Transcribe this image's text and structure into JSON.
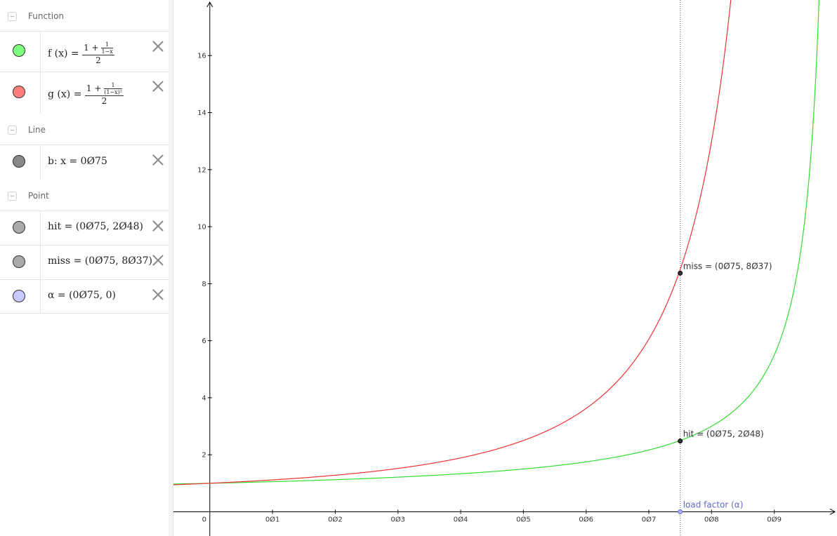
{
  "algebra": {
    "sections": {
      "function": "Function",
      "line": "Line",
      "point": "Point"
    },
    "functions": [
      {
        "name": "f",
        "lhs": "f (x)",
        "eq": "=",
        "num_one": "1 +",
        "inner_num": "1",
        "inner_den": "1−x",
        "den": "2",
        "color": "#7fff7f"
      },
      {
        "name": "g",
        "lhs": "g (x)",
        "eq": "=",
        "num_one": "1 +",
        "inner_num": "1",
        "inner_den": "(1−x)²",
        "den": "2",
        "color": "#ff7f7f"
      }
    ],
    "line": {
      "text": "b: x = 0Ø75",
      "color": "#888888"
    },
    "points": [
      {
        "text": "hit = (0Ø75, 2Ø48)",
        "color": "#aaaaaa"
      },
      {
        "text": "miss = (0Ø75, 8Ø37)",
        "color": "#aaaaaa"
      },
      {
        "text": "α = (0Ø75, 0)",
        "color": "#c8c8ff"
      }
    ]
  },
  "graph": {
    "x_ticks": [
      {
        "v": 0,
        "label": "0"
      },
      {
        "v": 0.1,
        "label": "0Ø1"
      },
      {
        "v": 0.2,
        "label": "0Ø2"
      },
      {
        "v": 0.3,
        "label": "0Ø3"
      },
      {
        "v": 0.4,
        "label": "0Ø4"
      },
      {
        "v": 0.5,
        "label": "0Ø5"
      },
      {
        "v": 0.6,
        "label": "0Ø6"
      },
      {
        "v": 0.7,
        "label": "0Ø7"
      },
      {
        "v": 0.8,
        "label": "0Ø8"
      },
      {
        "v": 0.9,
        "label": "0Ø9"
      }
    ],
    "y_ticks": [
      {
        "v": 2,
        "label": "2"
      },
      {
        "v": 4,
        "label": "4"
      },
      {
        "v": 6,
        "label": "6"
      },
      {
        "v": 8,
        "label": "8"
      },
      {
        "v": 10,
        "label": "10"
      },
      {
        "v": 12,
        "label": "12"
      },
      {
        "v": 14,
        "label": "14"
      },
      {
        "v": 16,
        "label": "16"
      }
    ],
    "x_range": [
      -0.058,
      1.0
    ],
    "y_range": [
      -0.85,
      17.95
    ],
    "line_x": 0.75,
    "point_labels": {
      "miss": "miss = (0Ø75, 8Ø37)",
      "hit": "hit = (0Ø75, 2Ø48)",
      "alpha": "load factor (α)"
    },
    "points": {
      "miss": [
        0.75,
        8.37
      ],
      "hit": [
        0.75,
        2.48
      ],
      "alpha": [
        0.75,
        0
      ]
    },
    "colors": {
      "f": "#33dd33",
      "g": "#ee3333",
      "alpha": "#6666cc",
      "axis": "#000000",
      "line": "#555555"
    }
  }
}
